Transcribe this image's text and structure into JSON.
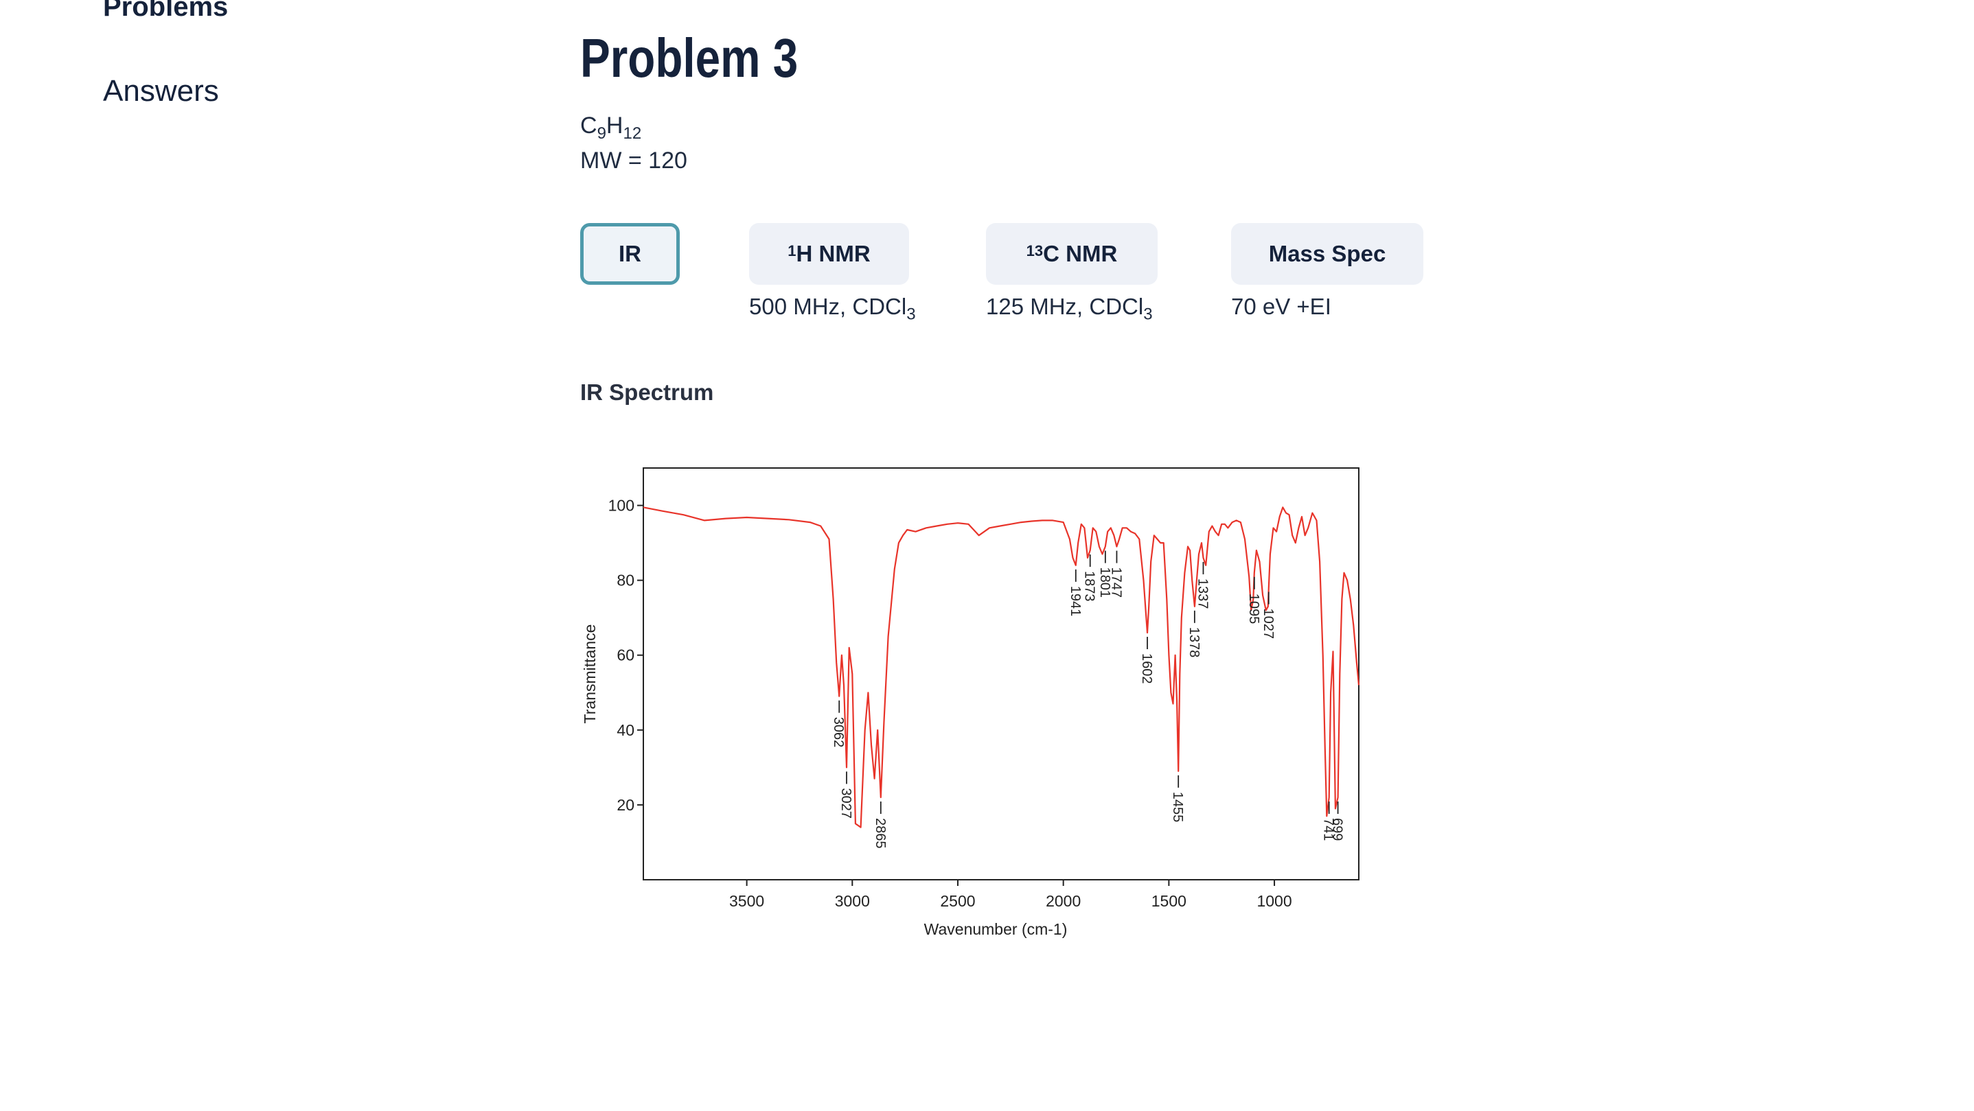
{
  "sidebar": {
    "items": [
      {
        "label": "Problems"
      },
      {
        "label": "Answers"
      }
    ]
  },
  "main": {
    "title": "Problem 3",
    "formula": {
      "c": "C",
      "c_sub": "9",
      "h": "H",
      "h_sub": "12"
    },
    "mw": "MW = 120",
    "tabs": [
      {
        "label": "IR",
        "sup": "",
        "subtitle": ""
      },
      {
        "label": "H NMR",
        "sup": "1",
        "subtitle": "500 MHz, CDCl",
        "subtitle_sub": "3"
      },
      {
        "label": "C NMR",
        "sup": "13",
        "subtitle": "125 MHz, CDCl",
        "subtitle_sub": "3"
      },
      {
        "label": "Mass Spec",
        "sup": "",
        "subtitle": "70 eV +EI"
      }
    ],
    "section_title": "IR Spectrum"
  },
  "colors": {
    "text": "#15223b",
    "accent": "#4e9aab",
    "tab_bg": "#eef1f7",
    "spectrum_line": "#e8342a"
  },
  "chart_data": {
    "type": "line",
    "title": "",
    "xlabel": "Wavenumber (cm-1)",
    "ylabel": "Transmittance",
    "xlim": [
      3990,
      600
    ],
    "ylim": [
      0,
      110
    ],
    "x_reversed": true,
    "x_ticks": [
      3500,
      3000,
      2500,
      2000,
      1500,
      1000
    ],
    "y_ticks": [
      20,
      40,
      60,
      80,
      100
    ],
    "grid": false,
    "series": [
      {
        "x": [
          3990,
          3900,
          3800,
          3700,
          3600,
          3500,
          3400,
          3300,
          3200,
          3150,
          3110,
          3090,
          3075,
          3062,
          3050,
          3040,
          3027,
          3015,
          3000,
          2985,
          2960,
          2940,
          2925,
          2910,
          2895,
          2880,
          2865,
          2850,
          2830,
          2800,
          2780,
          2760,
          2740,
          2700,
          2650,
          2600,
          2550,
          2500,
          2450,
          2400,
          2350,
          2300,
          2250,
          2200,
          2150,
          2100,
          2050,
          2000,
          1970,
          1955,
          1941,
          1930,
          1915,
          1900,
          1885,
          1873,
          1860,
          1845,
          1830,
          1815,
          1801,
          1790,
          1775,
          1760,
          1747,
          1735,
          1720,
          1700,
          1680,
          1660,
          1640,
          1620,
          1610,
          1602,
          1595,
          1585,
          1570,
          1555,
          1540,
          1525,
          1510,
          1500,
          1490,
          1480,
          1470,
          1462,
          1455,
          1448,
          1440,
          1425,
          1410,
          1400,
          1390,
          1378,
          1368,
          1358,
          1345,
          1337,
          1325,
          1310,
          1295,
          1280,
          1265,
          1250,
          1235,
          1220,
          1200,
          1180,
          1160,
          1140,
          1120,
          1110,
          1100,
          1095,
          1085,
          1070,
          1055,
          1040,
          1030,
          1027,
          1020,
          1005,
          990,
          975,
          960,
          945,
          930,
          915,
          900,
          885,
          870,
          855,
          840,
          820,
          800,
          785,
          770,
          760,
          752,
          741,
          733,
          722,
          711,
          699,
          690,
          680,
          670,
          655,
          640,
          625,
          610,
          600
        ],
        "y": [
          99.5,
          98.5,
          97.5,
          96,
          96.5,
          96.8,
          96.5,
          96.2,
          95.5,
          94.5,
          91,
          75,
          58,
          49,
          60,
          52,
          30,
          62,
          55,
          15,
          14,
          40,
          50,
          36,
          27,
          40,
          22,
          42,
          65,
          83,
          90,
          92,
          93.5,
          93,
          94,
          94.5,
          95,
          95.3,
          95,
          92,
          94,
          94.5,
          95,
          95.5,
          95.8,
          96,
          96,
          95.5,
          91,
          86,
          84,
          90,
          95,
          94,
          86,
          88,
          94,
          93,
          89,
          87,
          89,
          93,
          94,
          92,
          89,
          91,
          94,
          94,
          93,
          92.5,
          91,
          80,
          72,
          66,
          73,
          85,
          92,
          91,
          90,
          90,
          75,
          60,
          50,
          47,
          60,
          48,
          29,
          55,
          70,
          82,
          89,
          88,
          80,
          73,
          80,
          87,
          90,
          86,
          84,
          93,
          94.5,
          93,
          92,
          95,
          95,
          94,
          95.5,
          96,
          95.5,
          91,
          81,
          72,
          75,
          82,
          88,
          85,
          76,
          72,
          73,
          78,
          87,
          94,
          93,
          97,
          99.5,
          98,
          97.5,
          92,
          90,
          94,
          97,
          92,
          94,
          98,
          96,
          85,
          60,
          35,
          17,
          22,
          50,
          61,
          19,
          22,
          55,
          75,
          82,
          80,
          75,
          68,
          58,
          52
        ]
      }
    ],
    "peak_labels": [
      {
        "x": 3062,
        "label": "3062"
      },
      {
        "x": 3027,
        "label": "3027"
      },
      {
        "x": 2865,
        "label": "2865"
      },
      {
        "x": 1941,
        "label": "1941"
      },
      {
        "x": 1873,
        "label": "1873"
      },
      {
        "x": 1801,
        "label": "1801"
      },
      {
        "x": 1747,
        "label": "1747"
      },
      {
        "x": 1602,
        "label": "1602"
      },
      {
        "x": 1455,
        "label": "1455"
      },
      {
        "x": 1378,
        "label": "1378"
      },
      {
        "x": 1337,
        "label": "1337"
      },
      {
        "x": 1095,
        "label": "1095"
      },
      {
        "x": 1027,
        "label": "1027"
      },
      {
        "x": 741,
        "label": "741"
      },
      {
        "x": 699,
        "label": "699"
      }
    ]
  }
}
